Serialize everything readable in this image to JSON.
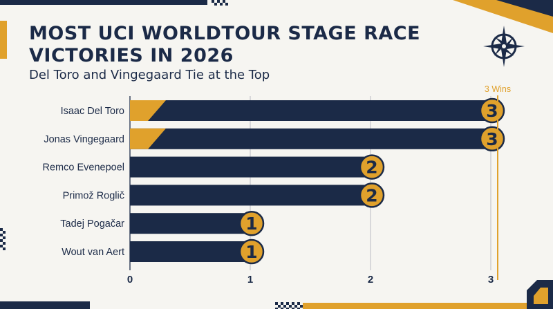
{
  "title": "MOST UCI WORLDTOUR STAGE RACE VICTORIES IN 2026",
  "subtitle": "Del Toro and Vingegaard Tie at the Top",
  "icons": [
    "compass-rose-icon",
    "checkered-flag-pattern"
  ],
  "colors": {
    "navy": "#1b2a47",
    "gold": "#e0a12c",
    "background": "#f6f5f1"
  },
  "chart_data": {
    "type": "bar",
    "orientation": "horizontal",
    "categories": [
      "Isaac Del Toro",
      "Jonas Vingegaard",
      "Remco Evenepoel",
      "Primož Roglič",
      "Tadej Pogačar",
      "Wout van Aert"
    ],
    "values": [
      3,
      3,
      2,
      2,
      1,
      1
    ],
    "data_labels": [
      "3",
      "3",
      "2",
      "2",
      "1",
      "1"
    ],
    "xticks": [
      "0",
      "1",
      "2",
      "3"
    ],
    "xlim": [
      0,
      3
    ],
    "reference_line": {
      "value": 3,
      "label": "3 Wins"
    },
    "grid": true,
    "legend": "none"
  }
}
